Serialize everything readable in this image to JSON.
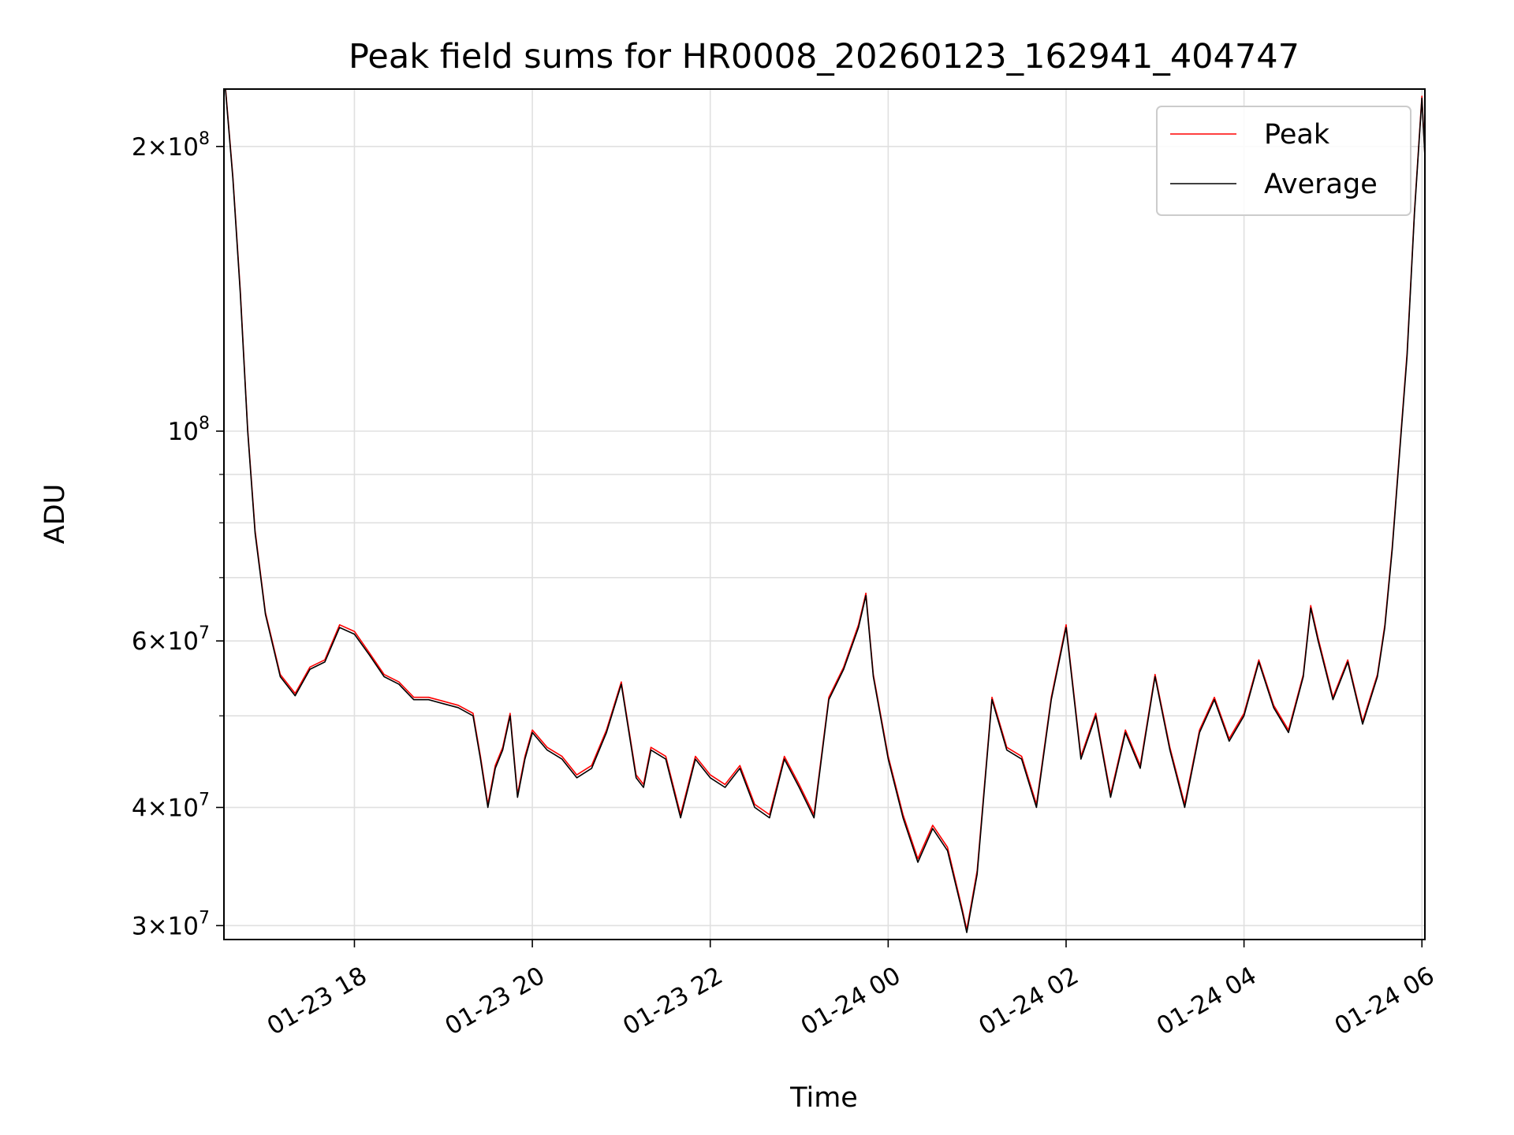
{
  "chart_data": {
    "type": "line",
    "title": "Peak field sums for HR0008_20260123_162941_404747",
    "xlabel": "Time",
    "ylabel": "ADU",
    "y_scale": "log",
    "xlim": [
      "2026-01-23 16:32",
      "2026-01-24 06:02"
    ],
    "ylim": [
      29000000,
      230000000
    ],
    "grid": true,
    "legend_position": "top-right",
    "x_ticks": [
      {
        "value": "2026-01-23 18:00",
        "label": "01-23 18"
      },
      {
        "value": "2026-01-23 20:00",
        "label": "01-23 20"
      },
      {
        "value": "2026-01-23 22:00",
        "label": "01-23 22"
      },
      {
        "value": "2026-01-24 00:00",
        "label": "01-24 00"
      },
      {
        "value": "2026-01-24 02:00",
        "label": "01-24 02"
      },
      {
        "value": "2026-01-24 04:00",
        "label": "01-24 04"
      },
      {
        "value": "2026-01-24 06:00",
        "label": "01-24 06"
      }
    ],
    "y_ticks": [
      {
        "value": 200000000,
        "mant": "2",
        "exp": "8"
      },
      {
        "value": 100000000,
        "mant": "",
        "exp": "8"
      },
      {
        "value": 60000000,
        "mant": "6",
        "exp": "7"
      },
      {
        "value": 40000000,
        "mant": "4",
        "exp": "7"
      },
      {
        "value": 30000000,
        "mant": "3",
        "exp": "7"
      }
    ],
    "y_minor_ticks": [
      50000000,
      70000000,
      80000000,
      90000000
    ],
    "series": [
      {
        "name": "Peak",
        "color": "#ff0000"
      },
      {
        "name": "Average",
        "color": "#000000"
      }
    ],
    "x": [
      "2026-01-23 16:33",
      "2026-01-23 16:38",
      "2026-01-23 16:43",
      "2026-01-23 16:48",
      "2026-01-23 16:53",
      "2026-01-23 17:00",
      "2026-01-23 17:10",
      "2026-01-23 17:20",
      "2026-01-23 17:30",
      "2026-01-23 17:40",
      "2026-01-23 17:50",
      "2026-01-23 18:00",
      "2026-01-23 18:10",
      "2026-01-23 18:20",
      "2026-01-23 18:30",
      "2026-01-23 18:40",
      "2026-01-23 18:50",
      "2026-01-23 19:00",
      "2026-01-23 19:10",
      "2026-01-23 19:20",
      "2026-01-23 19:25",
      "2026-01-23 19:30",
      "2026-01-23 19:35",
      "2026-01-23 19:40",
      "2026-01-23 19:45",
      "2026-01-23 19:50",
      "2026-01-23 19:55",
      "2026-01-23 20:00",
      "2026-01-23 20:10",
      "2026-01-23 20:20",
      "2026-01-23 20:30",
      "2026-01-23 20:40",
      "2026-01-23 20:50",
      "2026-01-23 21:00",
      "2026-01-23 21:10",
      "2026-01-23 21:15",
      "2026-01-23 21:20",
      "2026-01-23 21:30",
      "2026-01-23 21:40",
      "2026-01-23 21:50",
      "2026-01-23 22:00",
      "2026-01-23 22:10",
      "2026-01-23 22:20",
      "2026-01-23 22:30",
      "2026-01-23 22:40",
      "2026-01-23 22:50",
      "2026-01-23 23:00",
      "2026-01-23 23:10",
      "2026-01-23 23:20",
      "2026-01-23 23:30",
      "2026-01-23 23:40",
      "2026-01-23 23:45",
      "2026-01-23 23:50",
      "2026-01-24 00:00",
      "2026-01-24 00:10",
      "2026-01-24 00:20",
      "2026-01-24 00:30",
      "2026-01-24 00:40",
      "2026-01-24 00:50",
      "2026-01-24 00:53",
      "2026-01-24 01:00",
      "2026-01-24 01:10",
      "2026-01-24 01:20",
      "2026-01-24 01:30",
      "2026-01-24 01:40",
      "2026-01-24 01:50",
      "2026-01-24 02:00",
      "2026-01-24 02:10",
      "2026-01-24 02:20",
      "2026-01-24 02:30",
      "2026-01-24 02:40",
      "2026-01-24 02:50",
      "2026-01-24 03:00",
      "2026-01-24 03:10",
      "2026-01-24 03:20",
      "2026-01-24 03:30",
      "2026-01-24 03:40",
      "2026-01-24 03:50",
      "2026-01-24 04:00",
      "2026-01-24 04:10",
      "2026-01-24 04:20",
      "2026-01-24 04:30",
      "2026-01-24 04:40",
      "2026-01-24 04:45",
      "2026-01-24 04:50",
      "2026-01-24 05:00",
      "2026-01-24 05:10",
      "2026-01-24 05:20",
      "2026-01-24 05:30",
      "2026-01-24 05:35",
      "2026-01-24 05:40",
      "2026-01-24 05:45",
      "2026-01-24 05:50",
      "2026-01-24 05:55",
      "2026-01-24 06:00",
      "2026-01-24 06:02"
    ],
    "average": [
      230000000,
      185000000,
      140000000,
      100000000,
      78000000,
      64000000,
      55000000,
      52500000,
      56000000,
      57000000,
      62000000,
      61000000,
      58000000,
      55000000,
      54000000,
      52000000,
      52000000,
      51500000,
      51000000,
      50000000,
      45000000,
      40000000,
      44000000,
      46000000,
      50000000,
      41000000,
      45000000,
      48000000,
      46000000,
      45000000,
      43000000,
      44000000,
      48000000,
      54000000,
      43000000,
      42000000,
      46000000,
      45000000,
      39000000,
      45000000,
      43000000,
      42000000,
      44000000,
      40000000,
      39000000,
      45000000,
      42000000,
      39000000,
      52000000,
      56000000,
      62000000,
      67000000,
      55000000,
      45000000,
      39000000,
      35000000,
      38000000,
      36000000,
      31000000,
      29500000,
      34000000,
      52000000,
      46000000,
      45000000,
      40000000,
      52000000,
      62000000,
      45000000,
      50000000,
      41000000,
      48000000,
      44000000,
      55000000,
      46000000,
      40000000,
      48000000,
      52000000,
      47000000,
      50000000,
      57000000,
      51000000,
      48000000,
      55000000,
      65000000,
      60000000,
      52000000,
      57000000,
      49000000,
      55000000,
      62000000,
      75000000,
      95000000,
      120000000,
      170000000,
      225000000,
      195000000
    ],
    "peak": [
      231000000,
      186000000,
      141000000,
      100500000,
      78500000,
      64300000,
      55300000,
      52800000,
      56300000,
      57300000,
      62400000,
      61400000,
      58300000,
      55300000,
      54300000,
      52300000,
      52300000,
      51800000,
      51300000,
      50300000,
      45300000,
      40300000,
      44300000,
      46300000,
      50300000,
      41300000,
      45300000,
      48300000,
      46300000,
      45300000,
      43300000,
      44300000,
      48300000,
      54300000,
      43300000,
      42300000,
      46300000,
      45300000,
      39300000,
      45300000,
      43300000,
      42300000,
      44300000,
      40300000,
      39300000,
      45300000,
      42300000,
      39300000,
      52300000,
      56300000,
      62400000,
      67400000,
      55300000,
      45300000,
      39300000,
      35300000,
      38300000,
      36300000,
      31200000,
      29700000,
      34300000,
      52300000,
      46300000,
      45300000,
      40300000,
      52300000,
      62400000,
      45300000,
      50300000,
      41300000,
      48300000,
      44300000,
      55300000,
      46300000,
      40300000,
      48300000,
      52300000,
      47300000,
      50300000,
      57300000,
      51300000,
      48300000,
      55300000,
      65400000,
      60400000,
      52300000,
      57300000,
      49300000,
      55300000,
      62400000,
      75500000,
      95600000,
      121000000,
      171000000,
      226000000,
      196000000
    ]
  }
}
